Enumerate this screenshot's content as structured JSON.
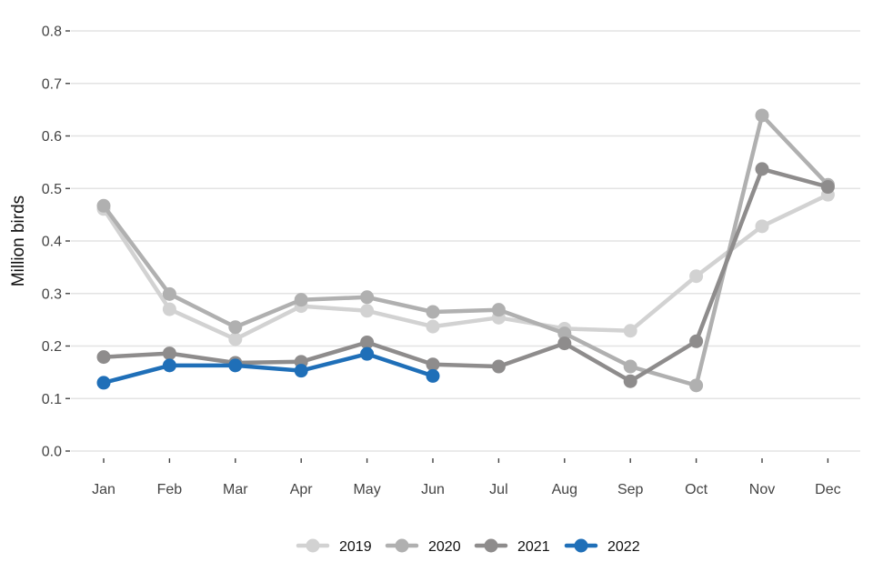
{
  "chart_data": {
    "type": "line",
    "title": "",
    "xlabel": "",
    "ylabel": "Million birds",
    "ylim": [
      0,
      0.8
    ],
    "yticks": [
      "0.0",
      "0.1",
      "0.2",
      "0.3",
      "0.4",
      "0.5",
      "0.6",
      "0.7",
      "0.8"
    ],
    "categories": [
      "Jan",
      "Feb",
      "Mar",
      "Apr",
      "May",
      "Jun",
      "Jul",
      "Aug",
      "Sep",
      "Oct",
      "Nov",
      "Dec"
    ],
    "legend_position": "bottom",
    "series": [
      {
        "name": "2019",
        "color": "#d2d2d2",
        "values": [
          0.461,
          0.27,
          0.213,
          0.276,
          0.267,
          0.237,
          0.254,
          0.233,
          0.229,
          0.333,
          0.428,
          0.488
        ]
      },
      {
        "name": "2020",
        "color": "#b0b0b0",
        "values": [
          0.467,
          0.299,
          0.236,
          0.288,
          0.293,
          0.265,
          0.269,
          0.224,
          0.161,
          0.125,
          0.639,
          0.507
        ]
      },
      {
        "name": "2021",
        "color": "#8e8c8c",
        "values": [
          0.179,
          0.186,
          0.168,
          0.17,
          0.207,
          0.165,
          0.161,
          0.205,
          0.133,
          0.209,
          0.537,
          0.503
        ]
      },
      {
        "name": "2022",
        "color": "#1f6fb8",
        "values": [
          0.13,
          0.163,
          0.163,
          0.153,
          0.185,
          0.143,
          null,
          null,
          null,
          null,
          null,
          null
        ]
      }
    ]
  }
}
